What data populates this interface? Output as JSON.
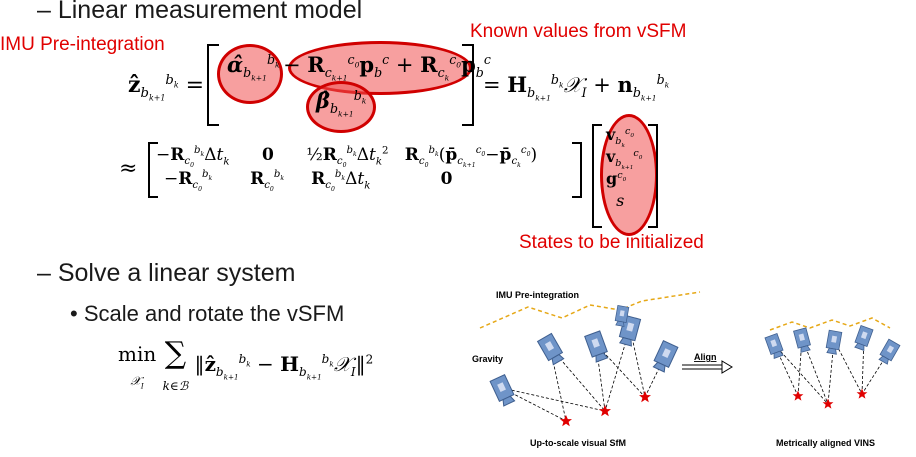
{
  "bullets": {
    "linear_model": "– Linear measurement model",
    "solve": "– Solve a linear system",
    "scale_rotate": "• Scale and rotate the vSFM"
  },
  "annotations": {
    "imu_preint": "IMU Pre-integration",
    "known_values": "Known values from vSFM",
    "states": "States to be initialized"
  },
  "diagram": {
    "imu_label": "IMU Pre-integration",
    "gravity_label": "Gravity",
    "align_label": "Align",
    "left_caption": "Up-to-scale visual SfM",
    "right_caption": "Metrically aligned VINS"
  },
  "colors": {
    "annotation_red": "#e00000",
    "highlight_fill": "#f05050",
    "camera_blue": "#6f94c8",
    "trajectory_gold": "#e6a817",
    "star_red": "#e00000"
  }
}
